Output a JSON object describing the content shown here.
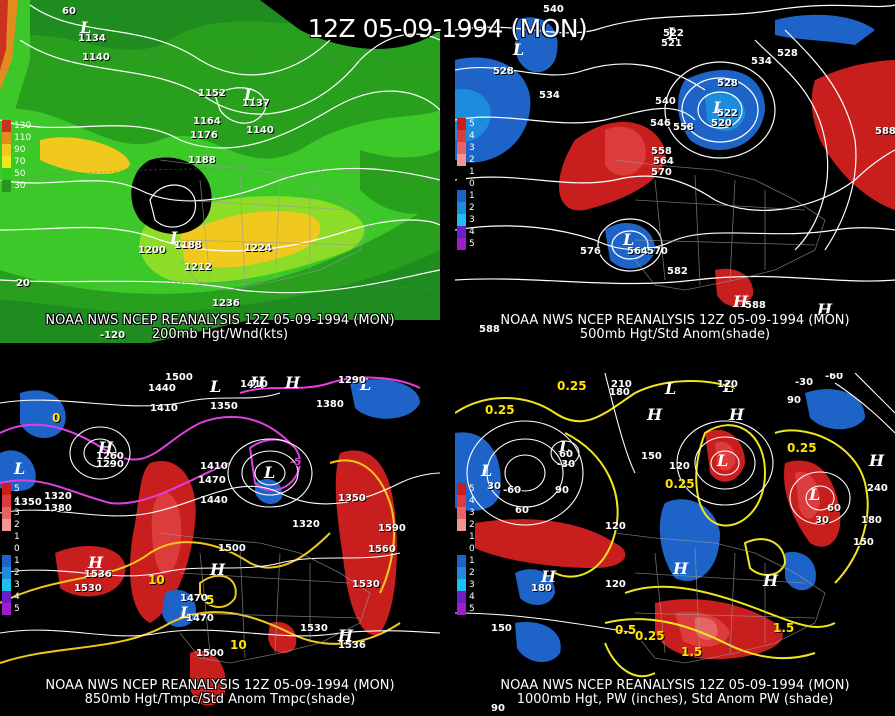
{
  "title": "12Z 05-09-1994 (MON)",
  "panels": {
    "tl": {
      "caption1": "NOAA NWS NCEP REANALYSIS 12Z 05-09-1994 (MON)",
      "caption2": "200mb Hgt/Wnd(kts)",
      "legend": [
        {
          "label": "130",
          "color": "#c8321e"
        },
        {
          "label": "110",
          "color": "#e08c1e"
        },
        {
          "label": "90",
          "color": "#f0c81e"
        },
        {
          "label": "70",
          "color": "#f0e61e"
        },
        {
          "label": "50",
          "color": "#32c81e"
        },
        {
          "label": "30",
          "color": "#28961e"
        }
      ],
      "labels": [
        "1134",
        "1140",
        "1152",
        "1137",
        "1164",
        "1176",
        "1140",
        "1188",
        "1200",
        "1188",
        "1224",
        "1212",
        "1236",
        "20",
        "-120",
        "60"
      ]
    },
    "tr": {
      "caption1": "NOAA NWS NCEP REANALYSIS 12Z 05-09-1994 (MON)",
      "caption2": "500mb Hgt/Std Anom(shade)",
      "legend": [
        {
          "label": "5",
          "color": "#c81e1e"
        },
        {
          "label": "4",
          "color": "#dc3c3c"
        },
        {
          "label": "3",
          "color": "#e66464"
        },
        {
          "label": "2",
          "color": "#f09696"
        },
        {
          "label": "1",
          "color": "#000000"
        },
        {
          "label": "0",
          "color": "#000000"
        },
        {
          "label": "1",
          "color": "#1e64c8"
        },
        {
          "label": "2",
          "color": "#1e8cdc"
        },
        {
          "label": "3",
          "color": "#1ebef0"
        },
        {
          "label": "4",
          "color": "#6e1ec8"
        },
        {
          "label": "5",
          "color": "#a01ec8"
        }
      ],
      "labels": [
        "540",
        "522",
        "521",
        "528",
        "534",
        "528",
        "534",
        "540",
        "522",
        "520",
        "546",
        "558",
        "564",
        "570",
        "558",
        "588",
        "576",
        "564",
        "570",
        "582",
        "588",
        "588",
        "528"
      ]
    },
    "bl": {
      "caption1": "NOAA NWS NCEP REANALYSIS 12Z 05-09-1994 (MON)",
      "caption2": "850mb Hgt/Tmpc/Std Anom Tmpc(shade)",
      "legend": [
        {
          "label": "5",
          "color": "#c81e1e"
        },
        {
          "label": "4",
          "color": "#dc3c3c"
        },
        {
          "label": "3",
          "color": "#e66464"
        },
        {
          "label": "2",
          "color": "#f09696"
        },
        {
          "label": "1",
          "color": "#000000"
        },
        {
          "label": "0",
          "color": "#000000"
        },
        {
          "label": "1",
          "color": "#1e64c8"
        },
        {
          "label": "2",
          "color": "#1e8cdc"
        },
        {
          "label": "3",
          "color": "#1ebef0"
        },
        {
          "label": "4",
          "color": "#6e1ec8"
        },
        {
          "label": "5",
          "color": "#a01ec8"
        }
      ],
      "labels": [
        "1500",
        "1440",
        "1410",
        "1350",
        "1410",
        "1290",
        "1380",
        "1260",
        "1290",
        "1320",
        "1380",
        "1350",
        "1410",
        "1470",
        "1440",
        "1350",
        "1320",
        "1590",
        "1500",
        "1560",
        "1530",
        "1536",
        "1530",
        "1470",
        "1500",
        "1530",
        "1536",
        "1470",
        "10",
        "0",
        "5",
        "10",
        "-5"
      ]
    },
    "br": {
      "caption1": "NOAA NWS NCEP REANALYSIS 12Z 05-09-1994 (MON)",
      "caption2": "1000mb Hgt, PW (inches), Std Anom PW (shade)",
      "legend": [
        {
          "label": "5",
          "color": "#c81e1e"
        },
        {
          "label": "4",
          "color": "#dc3c3c"
        },
        {
          "label": "3",
          "color": "#e66464"
        },
        {
          "label": "2",
          "color": "#f09696"
        },
        {
          "label": "1",
          "color": "#000000"
        },
        {
          "label": "0",
          "color": "#000000"
        },
        {
          "label": "1",
          "color": "#1e64c8"
        },
        {
          "label": "2",
          "color": "#1e8cdc"
        },
        {
          "label": "3",
          "color": "#1ebef0"
        },
        {
          "label": "4",
          "color": "#6e1ec8"
        },
        {
          "label": "5",
          "color": "#a01ec8"
        }
      ],
      "labels": [
        "0.25",
        "210",
        "120",
        "-30",
        "-60",
        "0.25",
        "180",
        "90",
        "60",
        "-30",
        "30",
        "-60",
        "150",
        "120",
        "0.25",
        "60",
        "30",
        "60",
        "180",
        "240",
        "90",
        "0.25",
        "150",
        "120",
        "120",
        "180",
        "150",
        "0.5",
        "0.25",
        "1.5",
        "1.5",
        "90"
      ]
    }
  }
}
